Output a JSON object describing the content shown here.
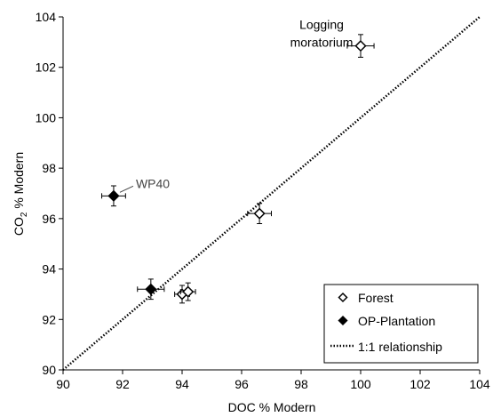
{
  "chart_data": {
    "type": "scatter",
    "xlabel": "DOC % Modern",
    "ylabel_main": "CO",
    "ylabel_sub": "2",
    "ylabel_rest": " % Modern",
    "xlim": [
      90,
      104
    ],
    "ylim": [
      90,
      104
    ],
    "xticks": [
      "90",
      "92",
      "94",
      "96",
      "98",
      "100",
      "102",
      "104"
    ],
    "yticks": [
      "90",
      "92",
      "94",
      "96",
      "98",
      "100",
      "102",
      "104"
    ],
    "grid": false,
    "legend_placement": "bottom-right",
    "series": [
      {
        "name": "Forest",
        "marker": "open-diamond",
        "points": [
          {
            "x": 94.0,
            "y": 93.0,
            "xerr": 0.25,
            "yerr": 0.35
          },
          {
            "x": 94.2,
            "y": 93.1,
            "xerr": 0.25,
            "yerr": 0.35
          },
          {
            "x": 96.6,
            "y": 96.2,
            "xerr": 0.4,
            "yerr": 0.4
          },
          {
            "x": 100.0,
            "y": 102.85,
            "xerr": 0.45,
            "yerr": 0.45
          }
        ]
      },
      {
        "name": "OP-Plantation",
        "marker": "filled-diamond",
        "points": [
          {
            "x": 91.7,
            "y": 96.9,
            "xerr": 0.4,
            "yerr": 0.4
          },
          {
            "x": 92.95,
            "y": 93.2,
            "xerr": 0.45,
            "yerr": 0.4
          }
        ]
      }
    ],
    "reference_line": {
      "name": "1:1 relationship",
      "from": [
        90,
        90
      ],
      "to": [
        104,
        104
      ],
      "style": "dotted"
    },
    "annotations": [
      {
        "lines": [
          "Logging",
          "moratorium"
        ],
        "x": 100.0,
        "y": 102.85
      },
      {
        "text": "WP40",
        "x": 91.7,
        "y": 96.9
      }
    ],
    "legend": [
      "Forest",
      "OP-Plantation",
      "1:1 relationship"
    ]
  }
}
